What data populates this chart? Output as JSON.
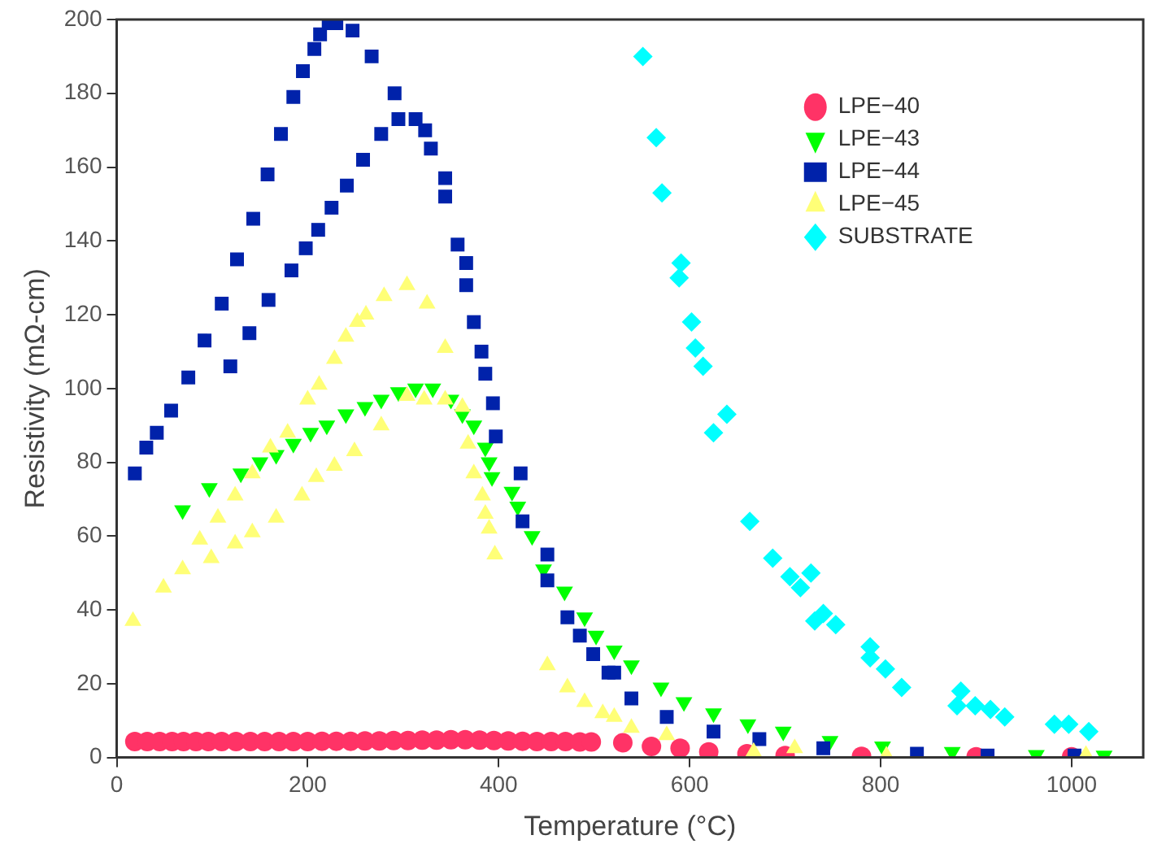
{
  "chart_data": {
    "type": "scatter",
    "xlabel": "Temperature (°C)",
    "ylabel": "Resistivity (mΩ-cm)",
    "xlim": [
      0,
      1075
    ],
    "xticks": [
      0,
      200,
      400,
      600,
      800,
      1000
    ],
    "ylim": [
      0,
      200
    ],
    "yticks": [
      0,
      20,
      40,
      60,
      80,
      100,
      120,
      140,
      160,
      180,
      200
    ],
    "grid": false,
    "legend": "top right",
    "series": [
      {
        "name": "LPE−40",
        "color": "#ff3366",
        "marker": "circle",
        "x": [
          19,
          32,
          45,
          58,
          70,
          83,
          96,
          110,
          125,
          140,
          155,
          170,
          185,
          200,
          215,
          230,
          245,
          260,
          275,
          290,
          305,
          320,
          335,
          350,
          365,
          380,
          395,
          410,
          425,
          440,
          455,
          470,
          485,
          497,
          530,
          560,
          590,
          620,
          660,
          700,
          780,
          900,
          1000
        ],
        "values": [
          4.3,
          4.3,
          4.3,
          4.3,
          4.3,
          4.3,
          4.3,
          4.3,
          4.3,
          4.3,
          4.3,
          4.3,
          4.3,
          4.3,
          4.4,
          4.4,
          4.4,
          4.5,
          4.5,
          4.6,
          4.6,
          4.7,
          4.7,
          4.8,
          4.8,
          4.7,
          4.6,
          4.5,
          4.4,
          4.3,
          4.3,
          4.3,
          4.2,
          4.2,
          4,
          3,
          2.5,
          1.5,
          1,
          0.5,
          0.3,
          0.2,
          0.2
        ]
      },
      {
        "name": "LPE−43",
        "color": "#00ff00",
        "marker": "triangle-down",
        "x": [
          69,
          97,
          130,
          150,
          167,
          185,
          203,
          220,
          240,
          260,
          277,
          295,
          313,
          331,
          350,
          362,
          374,
          386,
          390,
          393,
          414,
          420,
          435,
          447,
          469,
          490,
          502,
          521,
          539,
          570,
          594,
          625,
          661,
          698,
          747,
          802,
          875,
          963,
          1034
        ],
        "values": [
          67,
          73,
          77,
          80,
          82,
          85,
          88,
          90,
          93,
          95,
          97,
          99,
          100,
          100,
          97,
          93,
          90,
          84,
          80,
          76,
          72,
          68,
          60,
          51,
          45,
          38,
          33,
          29,
          25,
          19,
          15,
          12,
          9,
          7,
          4.5,
          3,
          1.5,
          0.7,
          0.5
        ]
      },
      {
        "name": "LPE−44",
        "color": "#0022aa",
        "marker": "square",
        "x": [
          19,
          31,
          42,
          57,
          75,
          92,
          110,
          126,
          143,
          158,
          172,
          185,
          195,
          207,
          213,
          222,
          230,
          247,
          267,
          291,
          313,
          323,
          329,
          344,
          344,
          357,
          366,
          366,
          374,
          382,
          386,
          394,
          397,
          423,
          425,
          451,
          451,
          472,
          485,
          499,
          515,
          521,
          539,
          576,
          625,
          673,
          740,
          838,
          912,
          1003,
          119,
          139,
          159,
          183,
          198,
          211,
          225,
          241,
          258,
          277,
          295
        ],
        "values": [
          77,
          84,
          88,
          94,
          103,
          113,
          123,
          135,
          146,
          158,
          169,
          179,
          186,
          192,
          196,
          199,
          199,
          197,
          190,
          180,
          173,
          170,
          165,
          157,
          152,
          139,
          134,
          128,
          118,
          110,
          104,
          96,
          87,
          77,
          64,
          55,
          48,
          38,
          33,
          28,
          23,
          23,
          16,
          11,
          7,
          5,
          2.5,
          1,
          0.5,
          0.5,
          106,
          115,
          124,
          132,
          138,
          143,
          149,
          155,
          162,
          169,
          173
        ]
      },
      {
        "name": "LPE−45",
        "color": "#ffff77",
        "marker": "triangle",
        "x": [
          17,
          49,
          69,
          87,
          106,
          124,
          142,
          161,
          179,
          200,
          212,
          228,
          240,
          252,
          261,
          280,
          304,
          325,
          344,
          368,
          374,
          383,
          386,
          390,
          396,
          451,
          472,
          490,
          509,
          521,
          539,
          576,
          667,
          710,
          806,
          1015,
          99,
          124,
          142,
          167,
          194,
          209,
          228,
          249,
          277,
          304,
          322,
          344,
          362
        ],
        "values": [
          37,
          46,
          51,
          59,
          65,
          71,
          77,
          84,
          88,
          97,
          101,
          108,
          114,
          118,
          120,
          125,
          128,
          123,
          111,
          85,
          77,
          71,
          66,
          62,
          55,
          25,
          19,
          15,
          12,
          11,
          8,
          6,
          1.5,
          2.5,
          0.5,
          0.7,
          54,
          58,
          61,
          65,
          71,
          76,
          79,
          83,
          90,
          98,
          97,
          97,
          95
        ]
      },
      {
        "name": "SUBSTRATE",
        "color": "#00ffff",
        "marker": "diamond",
        "x": [
          551,
          565,
          571,
          591,
          589,
          602,
          606,
          614,
          639,
          625,
          663,
          687,
          705,
          727,
          716,
          740,
          731,
          753,
          789,
          789,
          805,
          822,
          884,
          880,
          899,
          915,
          930,
          982,
          997,
          1018
        ],
        "values": [
          190,
          168,
          153,
          134,
          130,
          118,
          111,
          106,
          93,
          88,
          64,
          54,
          49,
          50,
          46,
          39,
          37,
          36,
          30,
          27,
          24,
          19,
          18,
          14,
          14,
          13,
          11,
          9,
          9,
          7
        ]
      }
    ]
  }
}
